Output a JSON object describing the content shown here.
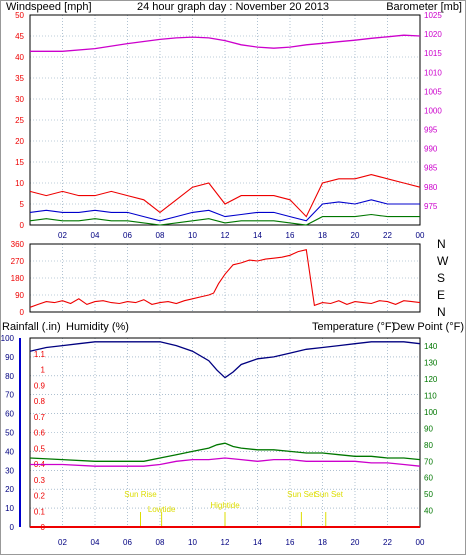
{
  "colors": {
    "red": "#ee0000",
    "blue": "#0000cc",
    "magenta": "#cc00cc",
    "green": "#007700",
    "yellow": "#dddd00",
    "dark_blue": "#000080",
    "grid": "#7d9bb5"
  },
  "chart_data": [
    {
      "type": "line",
      "title": "24 hour graph day : November 20 2013",
      "ylabel": "Windspeed [mph]",
      "ylabel_right": "Barometer [mb]",
      "ylim": [
        0,
        50
      ],
      "ylim_right": [
        970,
        1025
      ],
      "yticks": [
        "0",
        "5",
        "10",
        "15",
        "20",
        "25",
        "30",
        "35",
        "40",
        "45",
        "50"
      ],
      "yticks_right": [
        "975",
        "980",
        "985",
        "990",
        "995",
        "1000",
        "1005",
        "1010",
        "1015",
        "1020",
        "1025"
      ],
      "xlim": [
        0,
        24
      ],
      "xticks": [
        "02",
        "04",
        "06",
        "08",
        "10",
        "12",
        "14",
        "16",
        "18",
        "20",
        "22",
        "00"
      ],
      "grid": true,
      "series": [
        {
          "key": "gust",
          "axis": "left",
          "color": "#ee0000",
          "x": [
            0,
            1,
            2,
            3,
            4,
            5,
            6,
            7,
            8,
            9,
            10,
            11,
            12,
            13,
            14,
            15,
            16,
            17,
            18,
            19,
            20,
            21,
            22,
            23,
            24
          ],
          "y": [
            8,
            7,
            8,
            7,
            7,
            8,
            7,
            6,
            3,
            6,
            9,
            10,
            5,
            7,
            7,
            7,
            6,
            2,
            10,
            11,
            11,
            12,
            11,
            10,
            9
          ]
        },
        {
          "key": "avg",
          "axis": "left",
          "color": "#0000cc",
          "x": [
            0,
            1,
            2,
            3,
            4,
            5,
            6,
            7,
            8,
            9,
            10,
            11,
            12,
            13,
            14,
            15,
            16,
            17,
            18,
            19,
            20,
            21,
            22,
            23,
            24
          ],
          "y": [
            3,
            3.5,
            3,
            3,
            3.5,
            3,
            3,
            2,
            1,
            2,
            3,
            3.5,
            2,
            2.5,
            3,
            3,
            2,
            1,
            5,
            5.5,
            5,
            6,
            5,
            5,
            5
          ]
        },
        {
          "key": "low",
          "axis": "left",
          "color": "#007700",
          "x": [
            0,
            1,
            2,
            3,
            4,
            5,
            6,
            7,
            8,
            9,
            10,
            11,
            12,
            13,
            14,
            15,
            16,
            17,
            18,
            19,
            20,
            21,
            22,
            23,
            24
          ],
          "y": [
            1,
            1.5,
            1,
            1,
            1.5,
            1,
            1,
            0.5,
            0,
            0.5,
            1,
            1.5,
            0.5,
            1,
            1,
            1,
            0.5,
            0,
            2,
            2,
            2,
            2.5,
            2,
            2,
            2
          ]
        },
        {
          "key": "baro",
          "axis": "right",
          "color": "#cc00cc",
          "x": [
            0,
            2,
            4,
            6,
            8,
            9,
            10,
            11,
            12,
            13,
            14,
            15,
            16,
            17,
            18,
            19,
            20,
            21,
            22,
            23,
            24
          ],
          "y": [
            1015.5,
            1015.5,
            1016.2,
            1017.5,
            1018.6,
            1019,
            1019.2,
            1019,
            1018.3,
            1017.2,
            1016.6,
            1016.3,
            1016.6,
            1017.2,
            1017.6,
            1018,
            1018.4,
            1018.9,
            1019.3,
            1019.7,
            1019.5
          ]
        }
      ]
    },
    {
      "type": "line",
      "ylabel": "",
      "ylim": [
        0,
        360
      ],
      "yticks": [
        "0",
        "90",
        "180",
        "270",
        "360"
      ],
      "compass": [
        "N",
        "W",
        "S",
        "E",
        "N"
      ],
      "xlim": [
        0,
        24
      ],
      "grid": true,
      "series": [
        {
          "key": "direction",
          "color": "#ee0000",
          "x": [
            0,
            0.5,
            1,
            1.5,
            2,
            2.5,
            3,
            3.5,
            4,
            4.5,
            5,
            5.5,
            6,
            6.5,
            7,
            7.5,
            8,
            8.5,
            9,
            9.5,
            10,
            10.5,
            11,
            11.3,
            11.6,
            12,
            12.5,
            13,
            13.5,
            14,
            14.5,
            15,
            15.5,
            16,
            16.5,
            17,
            17.5,
            18,
            18.5,
            19,
            19.5,
            20,
            20.5,
            21,
            21.5,
            22,
            22.5,
            23,
            23.5,
            24
          ],
          "y": [
            25,
            40,
            55,
            50,
            60,
            45,
            70,
            40,
            55,
            60,
            50,
            45,
            55,
            50,
            65,
            40,
            50,
            55,
            45,
            60,
            70,
            80,
            90,
            100,
            150,
            200,
            250,
            260,
            275,
            270,
            280,
            285,
            290,
            300,
            320,
            330,
            35,
            50,
            45,
            60,
            40,
            55,
            50,
            45,
            60,
            55,
            40,
            60,
            55,
            50
          ]
        }
      ]
    },
    {
      "type": "line",
      "ylabel": "Rainfall (.in)",
      "ylabel_2": "Humidity (%)",
      "ylabel_right": "Temperature (°F)",
      "ylabel_right_2": "Dew Point (°F)",
      "ylim_rain": [
        0,
        1.2
      ],
      "ylim_humidity": [
        0,
        100
      ],
      "ylim_temp": [
        30,
        145
      ],
      "yticks_rain": [
        "0",
        "0.1",
        "0.2",
        "0.3",
        "0.4",
        "0.5",
        "0.6",
        "0.7",
        "0.8",
        "0.9",
        "1",
        "1.1"
      ],
      "yticks_humidity": [
        "0",
        "10",
        "20",
        "30",
        "40",
        "50",
        "60",
        "70",
        "80",
        "90",
        "100"
      ],
      "yticks_temp": [
        "40",
        "50",
        "60",
        "70",
        "80",
        "90",
        "100",
        "110",
        "120",
        "130",
        "140"
      ],
      "xlim": [
        0,
        24
      ],
      "xticks": [
        "02",
        "04",
        "06",
        "08",
        "10",
        "12",
        "14",
        "16",
        "18",
        "20",
        "22",
        "00"
      ],
      "grid": true,
      "series": [
        {
          "key": "humidity",
          "color": "#000080",
          "axis": "humidity",
          "x": [
            0,
            1,
            2,
            3,
            4,
            5,
            6,
            7,
            8,
            9,
            10,
            11,
            11.5,
            12,
            12.5,
            13,
            14,
            15,
            16,
            17,
            18,
            19,
            20,
            21,
            22,
            23,
            24
          ],
          "y": [
            93,
            95,
            96,
            97,
            98,
            98,
            98,
            98,
            98,
            96,
            93,
            88,
            83,
            79,
            82,
            86,
            89,
            90,
            92,
            94,
            95,
            96,
            97,
            98,
            98,
            98,
            97
          ]
        },
        {
          "key": "temperature",
          "color": "#007700",
          "axis": "temp",
          "x": [
            0,
            2,
            4,
            6,
            7,
            8,
            9,
            10,
            11,
            11.5,
            12,
            12.5,
            13,
            14,
            15,
            16,
            17,
            18,
            19,
            20,
            21,
            22,
            23,
            24
          ],
          "y": [
            72,
            71,
            70,
            70,
            70,
            72,
            74,
            76,
            78,
            80,
            81,
            79,
            78,
            77,
            77,
            76,
            75,
            75,
            74,
            73,
            73,
            72,
            72,
            71
          ]
        },
        {
          "key": "dew_point",
          "color": "#cc00cc",
          "axis": "temp",
          "x": [
            0,
            2,
            4,
            6,
            7,
            8,
            9,
            10,
            11,
            12,
            13,
            14,
            15,
            16,
            17,
            18,
            19,
            20,
            21,
            22,
            23,
            24
          ],
          "y": [
            68,
            68,
            67,
            67,
            67,
            68,
            70,
            71,
            71,
            72,
            71,
            70,
            71,
            71,
            70,
            70,
            70,
            70,
            69,
            69,
            68,
            67
          ]
        },
        {
          "key": "rainfall",
          "color": "#ee0000",
          "axis": "rain",
          "x": [
            0,
            24
          ],
          "y": [
            0,
            0
          ]
        }
      ],
      "annotations": [
        {
          "key": "sunrise",
          "label": "Sun Rise",
          "x": 6.8
        },
        {
          "key": "lowtide",
          "label": "Lowtide",
          "x": 8.1
        },
        {
          "key": "hightide",
          "label": "Hightide",
          "x": 12.0
        },
        {
          "key": "sunset",
          "label": "Sun Set",
          "x": 16.7
        },
        {
          "key": "sunset2",
          "label": "Sun Set",
          "x": 18.2
        }
      ]
    }
  ]
}
